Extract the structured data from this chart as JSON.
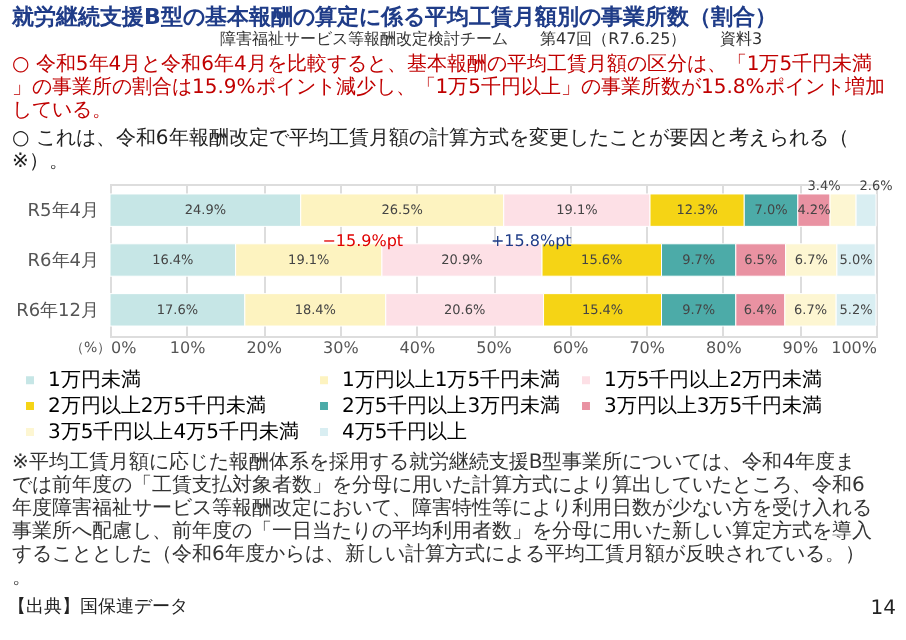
{
  "chart_data": {
    "type": "bar",
    "orientation": "horizontal",
    "stacked": true,
    "title": "就労継続支援B型の基本報酬の算定に係る平均工賃月額別の事業所数（割合）",
    "categories": [
      "R5年4月",
      "R6年4月",
      "R6年12月"
    ],
    "series": [
      {
        "name": "1万円未満",
        "color": "#c6e6e6",
        "values": [
          24.9,
          16.4,
          17.6
        ],
        "value_labels": [
          "24.9%",
          "16.4%",
          "17.6%"
        ]
      },
      {
        "name": "1万円以上1万5千円未満",
        "color": "#fdf3c0",
        "values": [
          26.5,
          19.1,
          18.4
        ],
        "value_labels": [
          "26.5%",
          "19.1%",
          "18.4%"
        ]
      },
      {
        "name": "1万5千円以上2万円未満",
        "color": "#fde0e6",
        "values": [
          19.1,
          20.9,
          20.6
        ],
        "value_labels": [
          "19.1%",
          "20.9%",
          "20.6%"
        ]
      },
      {
        "name": "2万円以上2万5千円未満",
        "color": "#f5d415",
        "values": [
          12.3,
          15.6,
          15.4
        ],
        "value_labels": [
          "12.3%",
          "15.6%",
          "15.4%"
        ]
      },
      {
        "name": "2万5千円以上3万円未満",
        "color": "#4caba8",
        "values": [
          7.0,
          9.7,
          9.7
        ],
        "value_labels": [
          "7.0%",
          "9.7%",
          "9.7%"
        ]
      },
      {
        "name": "3万円以上3万5千円未満",
        "color": "#e992a2",
        "values": [
          4.2,
          6.5,
          6.4
        ],
        "value_labels": [
          "4.2%",
          "6.5%",
          "6.4%"
        ]
      },
      {
        "name": "3万5千円以上4万5千円未満",
        "color": "#fdf6d2",
        "values": [
          3.4,
          6.7,
          6.7
        ],
        "value_labels": [
          "3.4%",
          "6.7%",
          "6.7%"
        ]
      },
      {
        "name": "4万5千円以上",
        "color": "#d9eef2",
        "values": [
          2.6,
          5.0,
          5.2
        ],
        "value_labels": [
          "2.6%",
          "5.0%",
          "5.2%"
        ]
      }
    ],
    "xlim": [
      0,
      100
    ],
    "xticks": [
      {
        "value": 0,
        "label": "0%"
      },
      {
        "value": 10,
        "label": "10%"
      },
      {
        "value": 20,
        "label": "20%"
      },
      {
        "value": 30,
        "label": "30%"
      },
      {
        "value": 40,
        "label": "40%"
      },
      {
        "value": 50,
        "label": "50%"
      },
      {
        "value": 60,
        "label": "60%"
      },
      {
        "value": 70,
        "label": "70%"
      },
      {
        "value": 80,
        "label": "80%"
      },
      {
        "value": 90,
        "label": "90%"
      },
      {
        "value": 100,
        "label": "100%"
      }
    ],
    "grid": "x",
    "legend": "bottom",
    "annotations": [
      "障害福祉サービス等報酬改定検討チーム",
      "第47回（R7.6.25）",
      "資料3",
      "○ 令和5年4月と令和6年4月を比較すると、基本報酬の平均工賃月額の区分は、「1万5千円未満」の事業所の割合は15.9%ポイント減少し、「1万5千円以上」の事業所数が15.8%ポイント増加している。",
      "○ これは、令和6年報酬改定で平均工賃月額の計算方式を変更したことが要因と考えられる（※）。",
      "−15.9%pt",
      "+15.8%pt",
      "（%）",
      "※平均工賃月額に応じた報酬体系を採用する就労継続支援B型事業所については、令和4年度までは前年度の「工賃支払対象者数」を分母に用いた計算方式により算出していたところ、令和6年度障害福祉サービス等報酬改定において、障害特性等により利用日数が少ない方を受け入れる事業所へ配慮し、前年度の「一日当たりの平均利用者数」を分母に用いた新しい算定方式を導入することとした（令和6年度からは、新しい計算方式による平均工賃月額が反映されている。）。",
      "【出典】国保連データ",
      "14"
    ]
  }
}
